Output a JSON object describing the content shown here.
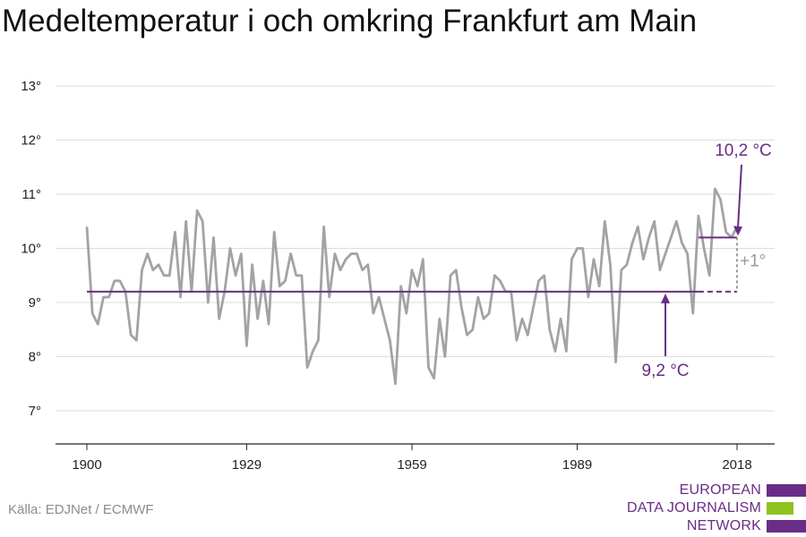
{
  "title": "Medeltemperatur i och omkring Frankfurt am Main",
  "source": "Källa: EDJNet / ECMWF",
  "logo": {
    "lines": [
      "EUROPEAN",
      "DATA JOURNALISM",
      "NETWORK"
    ],
    "bar_colors": [
      "#6a2d86",
      "#8fc31f",
      "#6a2d86"
    ]
  },
  "colors": {
    "series": "#a3a3a3",
    "baseline": "#6a2d86",
    "recent": "#6a2d86",
    "annotation_grey": "#9a9a9a",
    "grid": "#dddddd",
    "axis": "#222222"
  },
  "chart_data": {
    "type": "line",
    "title": "Medeltemperatur i och omkring Frankfurt am Main",
    "xlabel": "",
    "ylabel": "",
    "xlim": [
      1900,
      2018
    ],
    "ylim": [
      6.4,
      13.4
    ],
    "grid": true,
    "x_ticks": [
      1900,
      1929,
      1959,
      1989,
      2018
    ],
    "x_tick_labels": [
      "1900",
      "1929",
      "1959",
      "1989",
      "2018"
    ],
    "y_ticks": [
      7,
      8,
      9,
      10,
      11,
      12,
      13
    ],
    "y_tick_labels": [
      "7°",
      "8°",
      "9°",
      "10°",
      "11°",
      "12°",
      "13°"
    ],
    "series": [
      {
        "x": [
          1900,
          1901,
          1902,
          1903,
          1904,
          1905,
          1906,
          1907,
          1908,
          1909,
          1910,
          1911,
          1912,
          1913,
          1914,
          1915,
          1916,
          1917,
          1918,
          1919,
          1920,
          1921,
          1922,
          1923,
          1924,
          1925,
          1926,
          1927,
          1928,
          1929,
          1930,
          1931,
          1932,
          1933,
          1934,
          1935,
          1936,
          1937,
          1938,
          1939,
          1940,
          1941,
          1942,
          1943,
          1944,
          1945,
          1946,
          1947,
          1948,
          1949,
          1950,
          1951,
          1952,
          1953,
          1954,
          1955,
          1956,
          1957,
          1958,
          1959,
          1960,
          1961,
          1962,
          1963,
          1964,
          1965,
          1966,
          1967,
          1968,
          1969,
          1970,
          1971,
          1972,
          1973,
          1974,
          1975,
          1976,
          1977,
          1978,
          1979,
          1980,
          1981,
          1982,
          1983,
          1984,
          1985,
          1986,
          1987,
          1988,
          1989,
          1990,
          1991,
          1992,
          1993,
          1994,
          1995,
          1996,
          1997,
          1998,
          1999,
          2000,
          2001,
          2002,
          2003,
          2004,
          2005,
          2006,
          2007,
          2008,
          2009,
          2010,
          2011,
          2012,
          2013,
          2014,
          2015,
          2016,
          2017,
          2018
        ],
        "values": [
          10.4,
          8.8,
          8.6,
          9.1,
          9.1,
          9.4,
          9.4,
          9.2,
          8.4,
          8.3,
          9.6,
          9.9,
          9.6,
          9.7,
          9.5,
          9.5,
          10.3,
          9.1,
          10.5,
          9.2,
          10.7,
          10.5,
          9.0,
          10.2,
          8.7,
          9.2,
          10.0,
          9.5,
          9.9,
          8.2,
          9.7,
          8.7,
          9.4,
          8.6,
          10.3,
          9.3,
          9.4,
          9.9,
          9.5,
          9.5,
          7.8,
          8.1,
          8.3,
          10.4,
          9.1,
          9.9,
          9.6,
          9.8,
          9.9,
          9.9,
          9.6,
          9.7,
          8.8,
          9.1,
          8.7,
          8.3,
          7.5,
          9.3,
          8.8,
          9.6,
          9.3,
          9.8,
          7.8,
          7.6,
          8.7,
          8.0,
          9.5,
          9.6,
          8.9,
          8.4,
          8.5,
          9.1,
          8.7,
          8.8,
          9.5,
          9.4,
          9.2,
          9.2,
          8.3,
          8.7,
          8.4,
          8.9,
          9.4,
          9.5,
          8.5,
          8.1,
          8.7,
          8.1,
          9.8,
          10.0,
          10.0,
          9.1,
          9.8,
          9.3,
          10.5,
          9.7,
          7.9,
          9.6,
          9.7,
          10.1,
          10.4,
          9.8,
          10.2,
          10.5,
          9.6,
          9.9,
          10.2,
          10.5,
          10.1,
          9.9,
          8.8,
          10.6,
          10.0,
          9.5,
          11.1,
          10.9,
          10.3,
          10.2,
          10.4
        ]
      }
    ],
    "reference_lines": [
      {
        "value": 9.2,
        "label": "9,2 °C",
        "from": 1900,
        "solid_to": 2011,
        "dashed_to": 2018
      },
      {
        "value": 10.2,
        "label": "10,2 °C",
        "from": 2011,
        "solid_to": 2018
      }
    ],
    "difference_label": "+1°"
  }
}
